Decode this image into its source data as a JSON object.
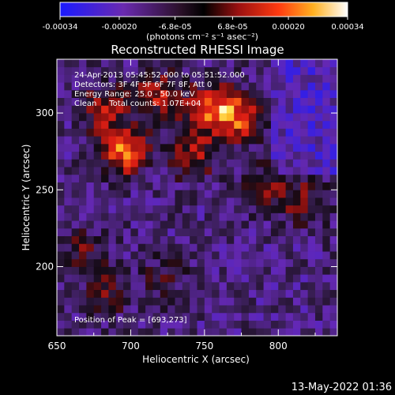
{
  "colors": {
    "background": "#000000",
    "text": "#ffffff",
    "colorscale": [
      "#1a1aff",
      "#5a2aa8",
      "#3a1a40",
      "#000000",
      "#7a1010",
      "#c01818",
      "#ff5a10",
      "#ffb020",
      "#ffff80",
      "#ffffff"
    ]
  },
  "colorbar": {
    "ticks": [
      "-0.00034",
      "-0.00020",
      "-6.8e-05",
      "6.8e-05",
      "0.00020",
      "0.00034"
    ],
    "unit_label": "(photons cm⁻² s⁻¹ asec⁻²)"
  },
  "annotations": {
    "time_range": "24-Apr-2013 05:45:52.000 to 05:51:52.000",
    "detectors": "Detectors: 3F 4F 5F 6F 7F 8F, Att 0",
    "energy": "Energy Range: 25.0 - 50.0 keV",
    "clean": "Clean     Total counts: 1.07E+04",
    "peak": "Position of Peak = [693,273]"
  },
  "footer": {
    "date": "13-May-2022 01:36"
  },
  "chart_data": {
    "type": "heatmap",
    "title": "Reconstructed RHESSI Image",
    "xlabel": "Heliocentric X (arcsec)",
    "ylabel": "Heliocentric Y (arcsec)",
    "xlim": [
      650,
      840
    ],
    "ylim": [
      155,
      335
    ],
    "x_ticks": [
      "650",
      "700",
      "750",
      "800"
    ],
    "y_ticks": [
      "200",
      "250",
      "300"
    ],
    "peak_position": [
      693,
      273
    ],
    "zlim": [
      -0.00034,
      0.00034
    ],
    "bright_sources": [
      {
        "x": 693,
        "y": 273,
        "value": 0.00034
      },
      {
        "x": 750,
        "y": 300,
        "value": 0.0003
      },
      {
        "x": 770,
        "y": 295,
        "value": 0.0003
      },
      {
        "x": 715,
        "y": 310,
        "value": 0.00024
      },
      {
        "x": 740,
        "y": 270,
        "value": 0.00022
      },
      {
        "x": 680,
        "y": 300,
        "value": 0.0002
      },
      {
        "x": 815,
        "y": 240,
        "value": 0.00016
      },
      {
        "x": 790,
        "y": 250,
        "value": 0.00015
      },
      {
        "x": 680,
        "y": 180,
        "value": 0.00014
      },
      {
        "x": 665,
        "y": 210,
        "value": 0.00012
      },
      {
        "x": 720,
        "y": 190,
        "value": 0.0001
      }
    ]
  }
}
